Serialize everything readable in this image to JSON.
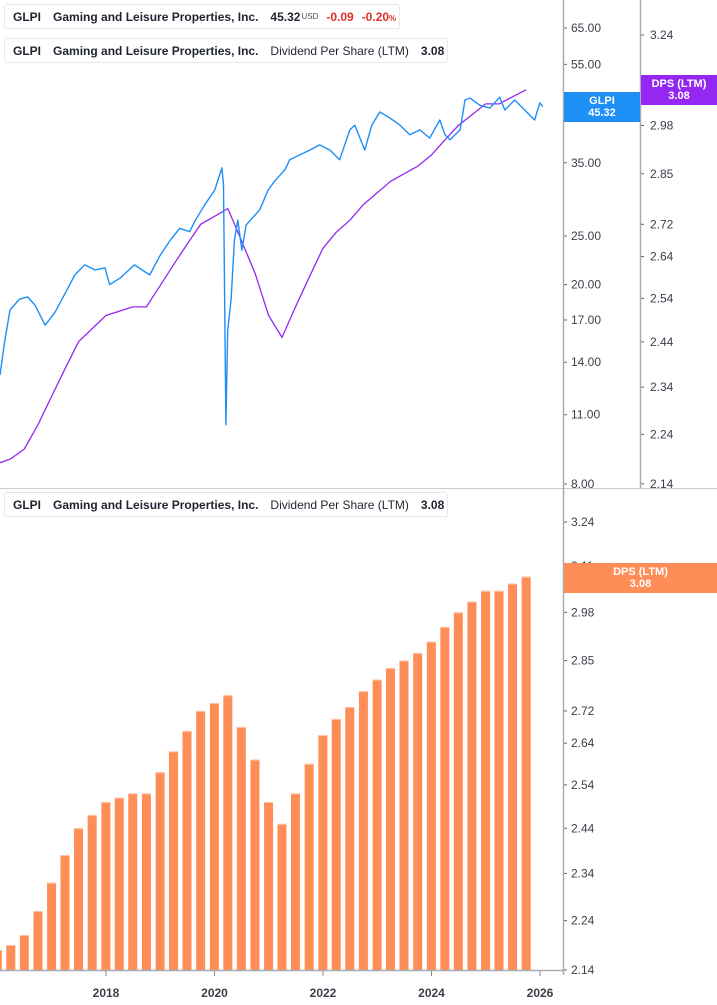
{
  "legends": {
    "price": {
      "ticker": "GLPI",
      "company": "Gaming and Leisure Properties, Inc.",
      "price": "45.32",
      "currency": "USD",
      "change": "-0.09",
      "change_pct": "-0.20",
      "pct_sign": "%"
    },
    "dps_top": {
      "ticker": "GLPI",
      "company": "Gaming and Leisure Properties, Inc.",
      "metric": "Dividend Per Share (LTM)",
      "value": "3.08"
    },
    "dps_bottom": {
      "ticker": "GLPI",
      "company": "Gaming and Leisure Properties, Inc.",
      "metric": "Dividend Per Share (LTM)",
      "value": "3.08"
    }
  },
  "tags": {
    "price": {
      "label": "GLPI",
      "value": "45.32"
    },
    "dps_top": {
      "label": "DPS (LTM)",
      "value": "3.08"
    },
    "dps_bottom": {
      "label": "DPS (LTM)",
      "value": "3.08"
    }
  },
  "colors": {
    "price": "#1e8ff5",
    "dps_line": "#9428f2",
    "dps_bar": "#ff8d57",
    "negative": "#e0302a"
  },
  "chart_data": [
    {
      "type": "line",
      "panel": "top",
      "y_scale": "log",
      "series": [
        {
          "name": "GLPI",
          "axis": "price",
          "points": [
            [
              "2016-01-18",
              13.2
            ],
            [
              "2016-02-20",
              15.5
            ],
            [
              "2016-03-25",
              17.8
            ],
            [
              "2016-05-28",
              18.7
            ],
            [
              "2016-07-22",
              18.9
            ],
            [
              "2016-09-10",
              18.2
            ],
            [
              "2016-11-17",
              16.6
            ],
            [
              "2017-01-22",
              17.6
            ],
            [
              "2017-03-28",
              19.1
            ],
            [
              "2017-06-05",
              20.9
            ],
            [
              "2017-08-10",
              21.9
            ],
            [
              "2017-10-18",
              21.4
            ],
            [
              "2017-12-25",
              21.6
            ],
            [
              "2018-01-25",
              20.0
            ],
            [
              "2018-04-05",
              20.6
            ],
            [
              "2018-07-12",
              21.9
            ],
            [
              "2018-10-22",
              20.9
            ],
            [
              "2019-01-01",
              22.9
            ],
            [
              "2019-03-08",
              24.5
            ],
            [
              "2019-05-12",
              25.9
            ],
            [
              "2019-07-18",
              25.5
            ],
            [
              "2019-08-20",
              26.7
            ],
            [
              "2019-10-26",
              28.8
            ],
            [
              "2020-01-03",
              30.9
            ],
            [
              "2020-02-20",
              34.2
            ],
            [
              "2020-03-02",
              31.6
            ],
            [
              "2020-03-18",
              10.5
            ],
            [
              "2020-03-30",
              16.2
            ],
            [
              "2020-04-22",
              18.7
            ],
            [
              "2020-05-14",
              24.5
            ],
            [
              "2020-06-06",
              26.9
            ],
            [
              "2020-07-04",
              23.4
            ],
            [
              "2020-08-01",
              26.3
            ],
            [
              "2020-11-01",
              28.2
            ],
            [
              "2020-12-28",
              30.9
            ],
            [
              "2021-02-15",
              32.3
            ],
            [
              "2021-04-20",
              33.9
            ],
            [
              "2021-05-22",
              35.5
            ],
            [
              "2021-07-30",
              36.3
            ],
            [
              "2021-10-05",
              37.1
            ],
            [
              "2021-12-10",
              38.0
            ],
            [
              "2022-02-17",
              37.1
            ],
            [
              "2022-04-23",
              35.5
            ],
            [
              "2022-07-01",
              40.7
            ],
            [
              "2022-08-03",
              41.6
            ],
            [
              "2022-10-09",
              37.1
            ],
            [
              "2022-11-25",
              41.6
            ],
            [
              "2023-01-18",
              44.2
            ],
            [
              "2023-03-27",
              43.0
            ],
            [
              "2023-06-03",
              41.6
            ],
            [
              "2023-08-08",
              39.8
            ],
            [
              "2023-10-15",
              40.7
            ],
            [
              "2023-12-20",
              39.2
            ],
            [
              "2024-02-26",
              42.6
            ],
            [
              "2024-04-01",
              39.8
            ],
            [
              "2024-05-05",
              38.9
            ],
            [
              "2024-07-12",
              40.7
            ],
            [
              "2024-08-14",
              46.7
            ],
            [
              "2024-09-17",
              47.1
            ],
            [
              "2024-11-22",
              45.6
            ],
            [
              "2025-01-29",
              45.0
            ],
            [
              "2025-04-05",
              47.3
            ],
            [
              "2025-05-09",
              44.6
            ],
            [
              "2025-07-15",
              46.7
            ],
            [
              "2025-09-20",
              44.6
            ],
            [
              "2025-11-26",
              42.6
            ],
            [
              "2025-12-31",
              46.1
            ],
            [
              "2026-01-20",
              45.32
            ]
          ]
        },
        {
          "name": "DPS (LTM)",
          "axis": "dps",
          "use": "dps_quarterly"
        }
      ],
      "price_axis": {
        "ticks": [
          "65.00",
          "55.00",
          "45.00",
          "35.00",
          "25.00",
          "20.00",
          "17.00",
          "14.00",
          "11.00",
          "8.00"
        ],
        "range": [
          8,
          65
        ]
      },
      "dps_axis": {
        "ticks": [
          "3.24",
          "3.11",
          "2.98",
          "2.85",
          "2.72",
          "2.64",
          "2.54",
          "2.44",
          "2.34",
          "2.24",
          "2.14"
        ],
        "range": [
          2.14,
          3.24
        ]
      }
    },
    {
      "type": "bar",
      "panel": "bottom",
      "y_scale": "log",
      "series": [
        {
          "name": "DPS (LTM)",
          "use": "dps_quarterly"
        }
      ],
      "y_axis": {
        "ticks": [
          "3.24",
          "3.11",
          "2.98",
          "2.85",
          "2.72",
          "2.64",
          "2.54",
          "2.44",
          "2.34",
          "2.24",
          "2.14"
        ],
        "range": [
          2.14,
          3.24
        ]
      },
      "x_axis": {
        "ticks": [
          "2018",
          "2020",
          "2022",
          "2024",
          "2026"
        ]
      }
    }
  ],
  "dps_quarterly": [
    [
      "2015-12-31",
      2.18
    ],
    [
      "2016-03-31",
      2.19
    ],
    [
      "2016-06-30",
      2.21
    ],
    [
      "2016-09-30",
      2.26
    ],
    [
      "2016-12-31",
      2.32
    ],
    [
      "2017-03-31",
      2.38
    ],
    [
      "2017-06-30",
      2.44
    ],
    [
      "2017-09-30",
      2.47
    ],
    [
      "2017-12-31",
      2.5
    ],
    [
      "2018-03-31",
      2.51
    ],
    [
      "2018-06-30",
      2.52
    ],
    [
      "2018-09-30",
      2.52
    ],
    [
      "2018-12-31",
      2.57
    ],
    [
      "2019-03-31",
      2.62
    ],
    [
      "2019-06-30",
      2.67
    ],
    [
      "2019-09-30",
      2.72
    ],
    [
      "2019-12-31",
      2.74
    ],
    [
      "2020-03-31",
      2.76
    ],
    [
      "2020-06-30",
      2.68
    ],
    [
      "2020-09-30",
      2.6
    ],
    [
      "2020-12-31",
      2.5
    ],
    [
      "2021-03-31",
      2.45
    ],
    [
      "2021-06-30",
      2.52
    ],
    [
      "2021-09-30",
      2.59
    ],
    [
      "2021-12-31",
      2.66
    ],
    [
      "2022-03-31",
      2.7
    ],
    [
      "2022-06-30",
      2.73
    ],
    [
      "2022-09-30",
      2.77
    ],
    [
      "2022-12-31",
      2.8
    ],
    [
      "2023-03-31",
      2.83
    ],
    [
      "2023-06-30",
      2.85
    ],
    [
      "2023-09-30",
      2.87
    ],
    [
      "2023-12-31",
      2.9
    ],
    [
      "2024-03-31",
      2.94
    ],
    [
      "2024-06-30",
      2.98
    ],
    [
      "2024-09-30",
      3.01
    ],
    [
      "2024-12-31",
      3.04
    ],
    [
      "2025-03-31",
      3.04
    ],
    [
      "2025-06-30",
      3.06
    ],
    [
      "2025-09-30",
      3.08
    ]
  ]
}
